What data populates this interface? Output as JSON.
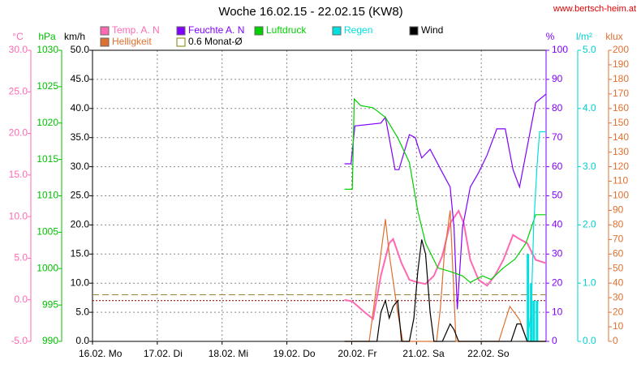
{
  "chart_data": {
    "type": "line",
    "title": "Woche 16.02.15 - 22.02.15 (KW8)",
    "source": "www.bertsch-heim.at",
    "grid": true,
    "xlim": [
      0,
      7
    ],
    "xticks": [
      {
        "value": 0,
        "label": "16.02. Mo"
      },
      {
        "value": 1,
        "label": "17.02. Di"
      },
      {
        "value": 2,
        "label": "18.02. Mi"
      },
      {
        "value": 3,
        "label": "19.02. Do"
      },
      {
        "value": 4,
        "label": "20.02. Fr"
      },
      {
        "value": 5,
        "label": "21.02. Sa"
      },
      {
        "value": 6,
        "label": "22.02. So"
      }
    ],
    "axes": [
      {
        "unit": "°C",
        "color": "#ff69b4",
        "lim": [
          -5,
          30
        ],
        "ticks": [
          {
            "value": -5,
            "label": "-5.0"
          },
          {
            "value": 0,
            "label": "0.0"
          },
          {
            "value": 5,
            "label": "5.0"
          },
          {
            "value": 10,
            "label": "10.0"
          },
          {
            "value": 15,
            "label": "15.0"
          },
          {
            "value": 20,
            "label": "20.0"
          },
          {
            "value": 25,
            "label": "25.0"
          },
          {
            "value": 30,
            "label": "30.0"
          }
        ]
      },
      {
        "unit": "hPa",
        "color": "#00c000",
        "lim": [
          990,
          1030
        ],
        "ticks": [
          990,
          995,
          1000,
          1005,
          1010,
          1015,
          1020,
          1025,
          1030
        ]
      },
      {
        "unit": "km/h",
        "color": "#000000",
        "lim": [
          0,
          50
        ],
        "ticks": [
          {
            "value": 0,
            "label": "0.0"
          },
          {
            "value": 5,
            "label": "5.0"
          },
          {
            "value": 10,
            "label": "10.0"
          },
          {
            "value": 15,
            "label": "15.0"
          },
          {
            "value": 20,
            "label": "20.0"
          },
          {
            "value": 25,
            "label": "25.0"
          },
          {
            "value": 30,
            "label": "30.0"
          },
          {
            "value": 35,
            "label": "35.0"
          },
          {
            "value": 40,
            "label": "40.0"
          },
          {
            "value": 45,
            "label": "45.0"
          },
          {
            "value": 50,
            "label": "50.0"
          }
        ]
      },
      {
        "unit": "%",
        "color": "#7f00ff",
        "lim": [
          0,
          100
        ],
        "ticks": [
          0,
          10,
          20,
          30,
          40,
          50,
          60,
          70,
          80,
          90,
          100
        ]
      },
      {
        "unit": "l/m²",
        "color": "#00d0d0",
        "lim": [
          0,
          5
        ],
        "ticks": [
          {
            "value": 0,
            "label": "0.0"
          },
          {
            "value": 1,
            "label": "1.0"
          },
          {
            "value": 2,
            "label": "2.0"
          },
          {
            "value": 3,
            "label": "3.0"
          },
          {
            "value": 4,
            "label": "4.0"
          },
          {
            "value": 5,
            "label": "5.0"
          }
        ]
      },
      {
        "unit": "klux",
        "color": "#e07030",
        "lim": [
          0,
          200
        ],
        "ticks": [
          0,
          10,
          20,
          30,
          40,
          50,
          60,
          70,
          80,
          90,
          100,
          110,
          120,
          130,
          140,
          150,
          160,
          170,
          180,
          190,
          200
        ]
      }
    ],
    "series": [
      {
        "name": "Temp. A. N",
        "color": "#ff69b4",
        "axis": 0,
        "x": [
          3.89,
          4.01,
          4.2,
          4.33,
          4.45,
          4.58,
          4.64,
          4.77,
          4.89,
          5.02,
          5.14,
          5.27,
          5.4,
          5.52,
          5.65,
          5.73,
          5.83,
          5.96,
          6.09,
          6.21,
          6.34,
          6.49,
          6.59,
          6.71,
          6.84,
          7.0
        ],
        "values": [
          0.0,
          -0.2,
          -1.5,
          -2.3,
          2.9,
          6.8,
          7.3,
          4.4,
          2.4,
          2.1,
          1.9,
          2.9,
          5.3,
          9.2,
          10.7,
          9.2,
          4.8,
          2.4,
          1.7,
          2.9,
          4.8,
          7.8,
          7.3,
          6.8,
          4.8,
          4.4
        ]
      },
      {
        "name": "Helligkeit",
        "color": "#e07030",
        "axis": 5,
        "x": [
          3.89,
          4.27,
          4.39,
          4.52,
          4.58,
          4.71,
          4.79,
          5.31,
          5.37,
          5.43,
          5.52,
          5.61,
          6.27,
          6.44,
          6.59,
          6.71,
          7.0
        ],
        "values": [
          0,
          0,
          40,
          84,
          60,
          20,
          0,
          0,
          23,
          60,
          90,
          0,
          0,
          24,
          15,
          0,
          0
        ]
      },
      {
        "name": "Feuchte A. N",
        "color": "#7f00ff",
        "axis": 3,
        "x": [
          3.89,
          3.99,
          4.05,
          4.45,
          4.52,
          4.67,
          4.73,
          4.89,
          4.98,
          5.08,
          5.21,
          5.4,
          5.52,
          5.58,
          5.63,
          5.71,
          5.83,
          5.96,
          6.09,
          6.24,
          6.37,
          6.49,
          6.59,
          6.78,
          6.84,
          7.0
        ],
        "values": [
          61,
          61,
          74,
          75,
          77,
          59,
          59,
          71,
          70,
          63,
          66,
          58,
          53,
          39,
          11,
          39,
          53,
          58,
          64,
          73,
          73,
          59,
          53,
          75,
          82,
          85
        ]
      },
      {
        "name": "Luftdruck",
        "color": "#00d000",
        "axis": 1,
        "x": [
          3.89,
          4.01,
          4.04,
          4.14,
          4.33,
          4.52,
          4.71,
          4.89,
          5.02,
          5.14,
          5.33,
          5.52,
          5.71,
          5.83,
          6.02,
          6.15,
          6.34,
          6.52,
          6.69,
          6.84,
          7.0
        ],
        "values": [
          1010.9,
          1010.9,
          1023.3,
          1022.4,
          1022.1,
          1020.8,
          1018.0,
          1014.6,
          1007.9,
          1003.5,
          1000.1,
          999.6,
          999.0,
          998.1,
          999.0,
          998.5,
          1000.1,
          1001.3,
          1003.5,
          1007.4,
          1007.4
        ]
      },
      {
        "name": "Regen",
        "color": "#00e0e0",
        "axis": 4,
        "x": [
          6.71,
          6.77,
          6.81,
          6.86,
          6.9,
          7.0
        ],
        "values": [
          0,
          0.5,
          2.0,
          3.0,
          3.6,
          3.6
        ],
        "bar_x": [
          6.72,
          6.77,
          6.81,
          6.86
        ],
        "bar_values": [
          1.5,
          1.0,
          0.7,
          0.7
        ]
      },
      {
        "name": "Wind",
        "color": "#000000",
        "axis": 2,
        "x": [
          3.89,
          4.39,
          4.45,
          4.52,
          4.58,
          4.64,
          4.71,
          4.77,
          4.89,
          4.96,
          5.02,
          5.08,
          5.14,
          5.21,
          5.27,
          5.4,
          5.52,
          5.58,
          5.65,
          6.46,
          6.55,
          6.61,
          6.71,
          7.0
        ],
        "values": [
          0,
          0,
          5,
          7,
          4,
          6,
          7,
          0,
          0,
          4,
          12,
          17.5,
          15,
          5,
          0,
          0,
          3,
          2,
          0,
          0,
          3,
          3,
          0,
          0
        ]
      }
    ],
    "reference_label": {
      "label": "0.6 Monat-Ø",
      "color": "#808000"
    },
    "reference_lines": [
      {
        "axis": 5,
        "value": 32,
        "color": "#a08040"
      },
      {
        "axis": 0,
        "value": -0.1,
        "color": "#800000"
      }
    ]
  }
}
